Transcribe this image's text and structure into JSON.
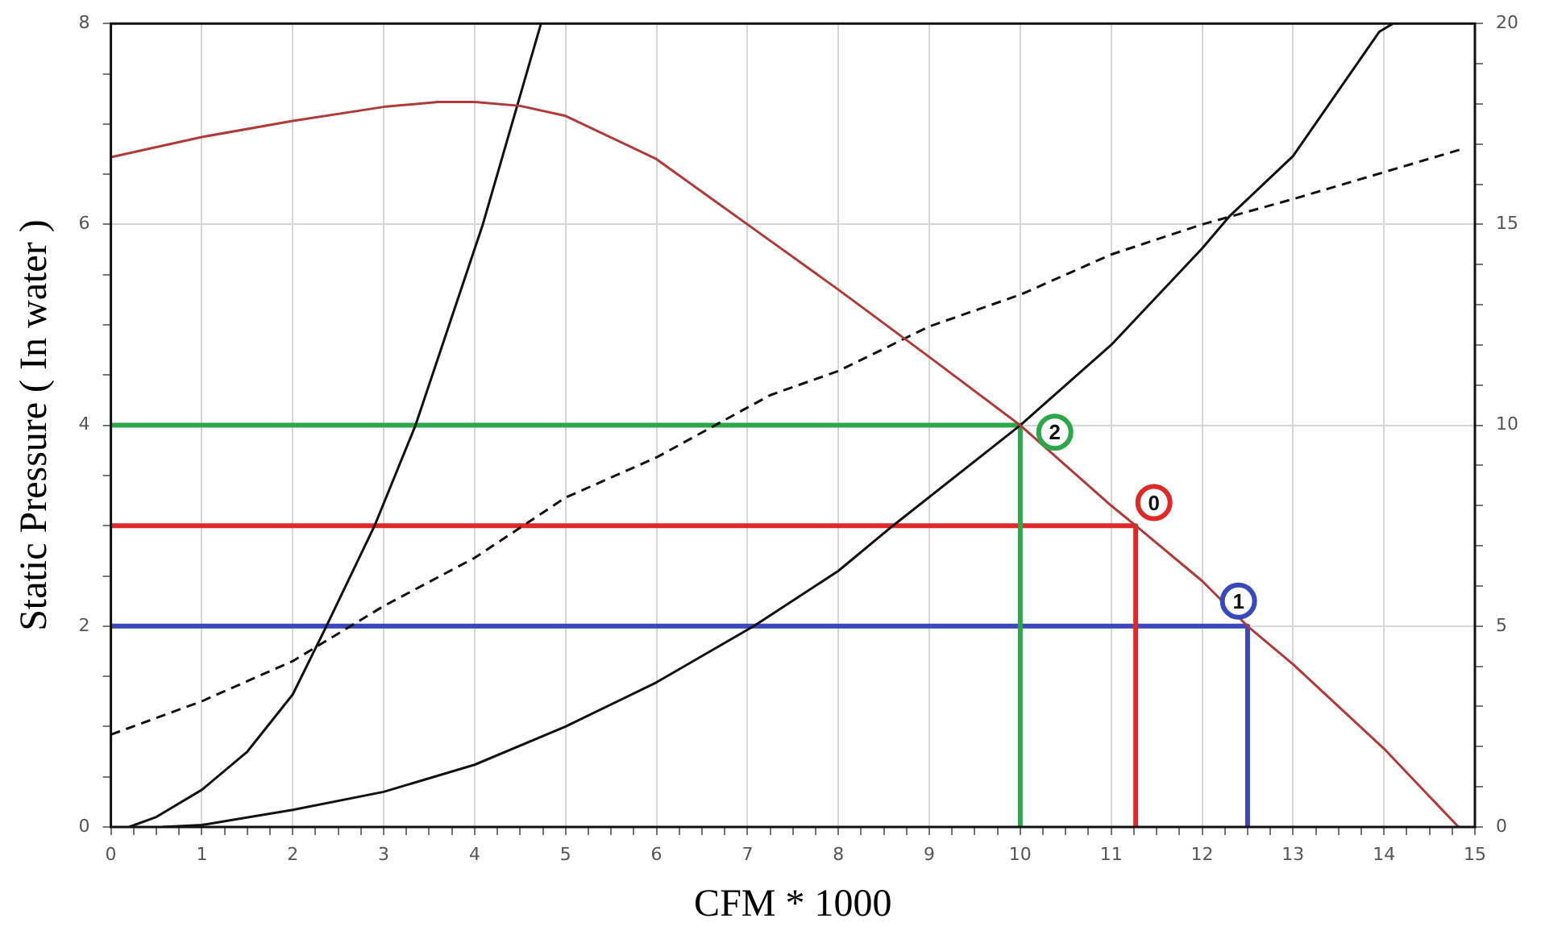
{
  "chart_data": {
    "type": "line",
    "xlabel": "CFM * 1000",
    "ylabel": "Static Pressure ( In water )",
    "xlim": [
      0,
      15
    ],
    "xticks": [
      0,
      {
        "value": 0.25,
        "label": null
      },
      {
        "value": 0.5,
        "label": null
      },
      {
        "value": 0.75,
        "label": null
      },
      1,
      {
        "value": 1.25,
        "label": null
      },
      {
        "value": 1.5,
        "label": null
      },
      {
        "value": 1.75,
        "label": null
      },
      2,
      {
        "value": 2.25,
        "label": null
      },
      {
        "value": 2.5,
        "label": null
      },
      {
        "value": 2.75,
        "label": null
      },
      3,
      {
        "value": 3.25,
        "label": null
      },
      {
        "value": 3.5,
        "label": null
      },
      {
        "value": 3.75,
        "label": null
      },
      4,
      {
        "value": 4.25,
        "label": null
      },
      {
        "value": 4.5,
        "label": null
      },
      {
        "value": 4.75,
        "label": null
      },
      5,
      {
        "value": 5.25,
        "label": null
      },
      {
        "value": 5.5,
        "label": null
      },
      {
        "value": 5.75,
        "label": null
      },
      6,
      {
        "value": 6.25,
        "label": null
      },
      {
        "value": 6.5,
        "label": null
      },
      {
        "value": 6.75,
        "label": null
      },
      7,
      {
        "value": 7.25,
        "label": null
      },
      {
        "value": 7.5,
        "label": null
      },
      {
        "value": 7.75,
        "label": null
      },
      8,
      {
        "value": 8.25,
        "label": null
      },
      {
        "value": 8.5,
        "label": null
      },
      {
        "value": 8.75,
        "label": null
      },
      9,
      {
        "value": 9.25,
        "label": null
      },
      {
        "value": 9.5,
        "label": null
      },
      {
        "value": 9.75,
        "label": null
      },
      10,
      {
        "value": 10.25,
        "label": null
      },
      {
        "value": 10.5,
        "label": null
      },
      {
        "value": 10.75,
        "label": null
      },
      11,
      {
        "value": 11.25,
        "label": null
      },
      {
        "value": 11.5,
        "label": null
      },
      {
        "value": 11.75,
        "label": null
      },
      12,
      {
        "value": 12.25,
        "label": null
      },
      {
        "value": 12.5,
        "label": null
      },
      {
        "value": 12.75,
        "label": null
      },
      13,
      {
        "value": 13.25,
        "label": null
      },
      {
        "value": 13.5,
        "label": null
      },
      {
        "value": 13.75,
        "label": null
      },
      14,
      {
        "value": 14.25,
        "label": null
      },
      {
        "value": 14.5,
        "label": null
      },
      {
        "value": 14.75,
        "label": null
      },
      15
    ],
    "ylim": [
      0,
      8
    ],
    "yticks": [
      0,
      {
        "value": 0.5,
        "label": null
      },
      {
        "value": 1,
        "label": null
      },
      {
        "value": 1.5,
        "label": null
      },
      2,
      {
        "value": 2.5,
        "label": null
      },
      {
        "value": 3,
        "label": null
      },
      {
        "value": 3.5,
        "label": null
      },
      4,
      {
        "value": 4.5,
        "label": null
      },
      {
        "value": 5,
        "label": null
      },
      {
        "value": 5.5,
        "label": null
      },
      6,
      {
        "value": 6.5,
        "label": null
      },
      {
        "value": 7,
        "label": null
      },
      {
        "value": 7.5,
        "label": null
      },
      8
    ],
    "y2lim": [
      0,
      20
    ],
    "y2ticks": [
      0,
      {
        "value": 1,
        "label": null
      },
      {
        "value": 2,
        "label": null
      },
      {
        "value": 3,
        "label": null
      },
      {
        "value": 4,
        "label": null
      },
      5,
      {
        "value": 6,
        "label": null
      },
      {
        "value": 7,
        "label": null
      },
      {
        "value": 8,
        "label": null
      },
      {
        "value": 9,
        "label": null
      },
      10,
      {
        "value": 11,
        "label": null
      },
      {
        "value": 12,
        "label": null
      },
      {
        "value": 13,
        "label": null
      },
      {
        "value": 14,
        "label": null
      },
      15,
      {
        "value": 16,
        "label": null
      },
      {
        "value": 17,
        "label": null
      },
      {
        "value": 18,
        "label": null
      },
      {
        "value": 19,
        "label": null
      },
      20
    ],
    "grid": true,
    "legend": false,
    "marker": "none",
    "series": [
      {
        "color": "#b03a3a",
        "x": [
          0,
          1,
          2,
          3,
          3.6,
          4,
          4.5,
          5,
          6,
          7,
          8,
          9,
          10,
          11,
          11.27,
          12,
          12.5,
          13,
          14,
          14.82
        ],
        "values": [
          6.67,
          6.87,
          7.03,
          7.17,
          7.22,
          7.22,
          7.18,
          7.08,
          6.65,
          6.0,
          5.35,
          4.68,
          4.0,
          3.2,
          3.0,
          2.45,
          2.0,
          1.62,
          0.78,
          0
        ]
      },
      {
        "color": "#111111",
        "x": [
          0.2,
          0.5,
          1,
          1.5,
          2,
          2.37,
          2.9,
          3.35,
          4.09,
          4.73
        ],
        "values": [
          0,
          0.1,
          0.37,
          0.75,
          1.32,
          2,
          3,
          4,
          6,
          8
        ]
      },
      {
        "color": "#111111",
        "x": [
          0.57,
          1,
          2,
          3,
          4,
          5,
          6,
          7.07,
          8,
          8.6,
          10,
          11,
          12,
          12.3,
          13,
          13.95,
          14.1
        ],
        "values": [
          0,
          0.02,
          0.17,
          0.35,
          0.62,
          1.0,
          1.44,
          2,
          2.55,
          3,
          4,
          4.8,
          5.76,
          6.08,
          6.68,
          7.92,
          8
        ]
      },
      {
        "color": "#111111",
        "axis": "y2",
        "line_style": "dashed",
        "x": [
          0,
          1,
          2,
          3,
          4,
          5,
          6,
          7.25,
          8,
          9,
          10,
          11,
          12,
          13,
          14,
          14.85
        ],
        "values": [
          2.3,
          3.13,
          4.13,
          5.5,
          6.7,
          8.2,
          9.2,
          10.75,
          11.35,
          12.46,
          13.25,
          14.25,
          15.0,
          15.63,
          16.3,
          16.87
        ]
      },
      {
        "color": "#2ca84a",
        "x": [
          0,
          10,
          10
        ],
        "values": [
          4,
          4,
          0
        ]
      },
      {
        "color": "#e02828",
        "x": [
          0,
          11.27,
          11.27
        ],
        "values": [
          3,
          3,
          0
        ]
      },
      {
        "color": "#3a48c0",
        "x": [
          0,
          12.5,
          12.5
        ],
        "values": [
          2,
          2,
          0
        ]
      }
    ],
    "annotations": [
      {
        "text": "2",
        "x": 10.38,
        "y": 3.93
      },
      {
        "text": "0",
        "x": 11.47,
        "y": 3.23
      },
      {
        "text": "1",
        "x": 12.4,
        "y": 2.25
      }
    ]
  }
}
